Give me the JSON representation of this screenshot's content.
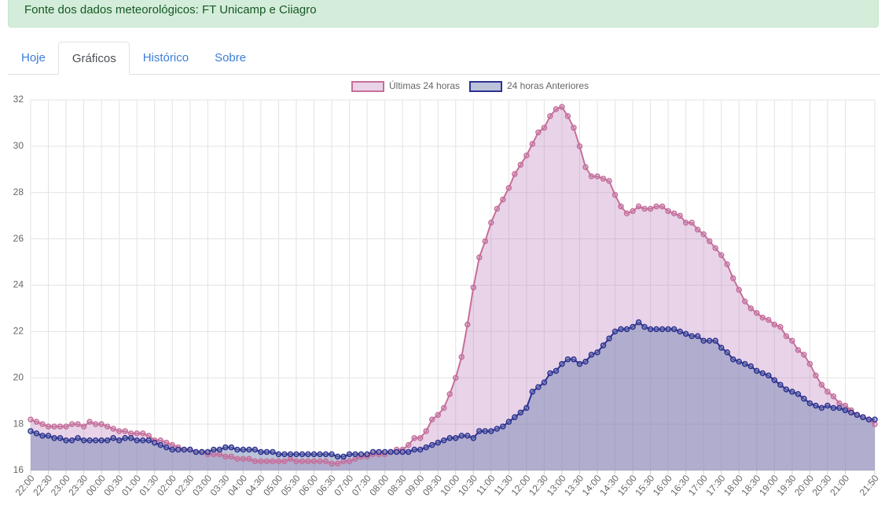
{
  "alert": "Fonte dos dados meteorológicos: FT Unicamp e Ciiagro",
  "tabs": [
    "Hoje",
    "Gráficos",
    "Histórico",
    "Sobre"
  ],
  "active_tab": 1,
  "chart_data": {
    "type": "line",
    "categories": [
      "22:00",
      null,
      null,
      "22:30",
      null,
      null,
      "23:00",
      null,
      null,
      "23:30",
      null,
      null,
      "00:00",
      null,
      null,
      "00:30",
      null,
      null,
      "01:00",
      null,
      null,
      "01:30",
      null,
      null,
      "02:00",
      null,
      null,
      "02:30",
      null,
      null,
      "03:00",
      null,
      null,
      "03:30",
      null,
      null,
      "04:00",
      null,
      null,
      "04:30",
      null,
      null,
      "05:00",
      null,
      null,
      "05:30",
      null,
      null,
      "06:00",
      null,
      null,
      "06:30",
      null,
      null,
      "07:00",
      null,
      null,
      "07:30",
      null,
      null,
      "08:00",
      null,
      null,
      "08:30",
      null,
      null,
      "09:00",
      null,
      null,
      "09:30",
      null,
      null,
      "10:00",
      null,
      null,
      "10:30",
      null,
      null,
      "11:00",
      null,
      null,
      "11:30",
      null,
      null,
      "12:00",
      null,
      null,
      "12:30",
      null,
      null,
      "13:00",
      null,
      null,
      "13:30",
      null,
      null,
      "14:00",
      null,
      null,
      "14:30",
      null,
      null,
      "15:00",
      null,
      null,
      "15:30",
      null,
      null,
      "16:00",
      null,
      null,
      "16:30",
      null,
      null,
      "17:00",
      null,
      null,
      "17:30",
      null,
      null,
      "18:00",
      null,
      null,
      "18:30",
      null,
      null,
      "19:00",
      null,
      null,
      "19:30",
      null,
      null,
      "20:00",
      null,
      null,
      "20:30",
      null,
      null,
      "21:00",
      null,
      null,
      null,
      null,
      "21:50"
    ],
    "series": [
      {
        "name": "Últimas 24 horas",
        "color": "#c66f98",
        "fill": "rgba(190,130,190,0.35)",
        "values": [
          18.2,
          18.1,
          18.0,
          17.9,
          17.9,
          17.9,
          17.9,
          18.0,
          18.0,
          17.9,
          18.1,
          18.0,
          18.0,
          17.9,
          17.8,
          17.7,
          17.7,
          17.6,
          17.6,
          17.6,
          17.5,
          17.3,
          17.3,
          17.2,
          17.1,
          17.0,
          16.9,
          16.9,
          16.8,
          16.8,
          16.7,
          16.7,
          16.7,
          16.6,
          16.6,
          16.5,
          16.5,
          16.5,
          16.4,
          16.4,
          16.4,
          16.4,
          16.4,
          16.4,
          16.5,
          16.4,
          16.4,
          16.4,
          16.4,
          16.4,
          16.4,
          16.3,
          16.3,
          16.4,
          16.4,
          16.5,
          16.6,
          16.6,
          16.7,
          16.7,
          16.7,
          16.8,
          16.9,
          16.9,
          17.1,
          17.4,
          17.4,
          17.7,
          18.2,
          18.4,
          18.7,
          19.3,
          20.0,
          20.9,
          22.3,
          23.9,
          25.2,
          25.9,
          26.7,
          27.3,
          27.7,
          28.2,
          28.8,
          29.2,
          29.6,
          30.1,
          30.6,
          30.8,
          31.3,
          31.6,
          31.7,
          31.3,
          30.8,
          30.0,
          29.1,
          28.7,
          28.7,
          28.6,
          28.5,
          27.9,
          27.4,
          27.1,
          27.2,
          27.4,
          27.3,
          27.3,
          27.4,
          27.4,
          27.2,
          27.1,
          27.0,
          26.7,
          26.7,
          26.4,
          26.2,
          25.9,
          25.6,
          25.3,
          24.9,
          24.3,
          23.8,
          23.3,
          23.0,
          22.8,
          22.6,
          22.5,
          22.3,
          22.2,
          21.8,
          21.6,
          21.2,
          21.0,
          20.6,
          20.1,
          19.7,
          19.4,
          19.2,
          18.9,
          18.8,
          18.6,
          18.4,
          18.3,
          18.2,
          18.0
        ]
      },
      {
        "name": "24 horas Anteriores",
        "color": "#2d3191",
        "fill": "rgba(120,135,180,0.5)",
        "values": [
          17.7,
          17.6,
          17.5,
          17.5,
          17.4,
          17.4,
          17.3,
          17.3,
          17.4,
          17.3,
          17.3,
          17.3,
          17.3,
          17.3,
          17.4,
          17.3,
          17.4,
          17.4,
          17.3,
          17.3,
          17.3,
          17.2,
          17.1,
          17.0,
          16.9,
          16.9,
          16.9,
          16.9,
          16.8,
          16.8,
          16.8,
          16.9,
          16.9,
          17.0,
          17.0,
          16.9,
          16.9,
          16.9,
          16.9,
          16.8,
          16.8,
          16.8,
          16.7,
          16.7,
          16.7,
          16.7,
          16.7,
          16.7,
          16.7,
          16.7,
          16.7,
          16.7,
          16.6,
          16.6,
          16.7,
          16.7,
          16.7,
          16.7,
          16.8,
          16.8,
          16.8,
          16.8,
          16.8,
          16.8,
          16.8,
          16.9,
          16.9,
          17.0,
          17.1,
          17.2,
          17.3,
          17.4,
          17.4,
          17.5,
          17.5,
          17.4,
          17.7,
          17.7,
          17.7,
          17.8,
          17.9,
          18.1,
          18.3,
          18.5,
          18.7,
          19.4,
          19.6,
          19.8,
          20.2,
          20.3,
          20.6,
          20.8,
          20.8,
          20.6,
          20.7,
          21.0,
          21.1,
          21.4,
          21.7,
          22.0,
          22.1,
          22.1,
          22.2,
          22.4,
          22.2,
          22.1,
          22.1,
          22.1,
          22.1,
          22.1,
          22.0,
          21.9,
          21.8,
          21.8,
          21.6,
          21.6,
          21.6,
          21.3,
          21.1,
          20.8,
          20.7,
          20.6,
          20.5,
          20.3,
          20.2,
          20.1,
          19.9,
          19.7,
          19.5,
          19.4,
          19.3,
          19.1,
          18.9,
          18.8,
          18.7,
          18.8,
          18.7,
          18.7,
          18.6,
          18.5,
          18.4,
          18.3,
          18.2,
          18.2
        ]
      }
    ],
    "ylim": [
      16,
      32
    ],
    "yticks": [
      16,
      18,
      20,
      22,
      24,
      26,
      28,
      30,
      32
    ],
    "grid": true,
    "legend": "top"
  }
}
